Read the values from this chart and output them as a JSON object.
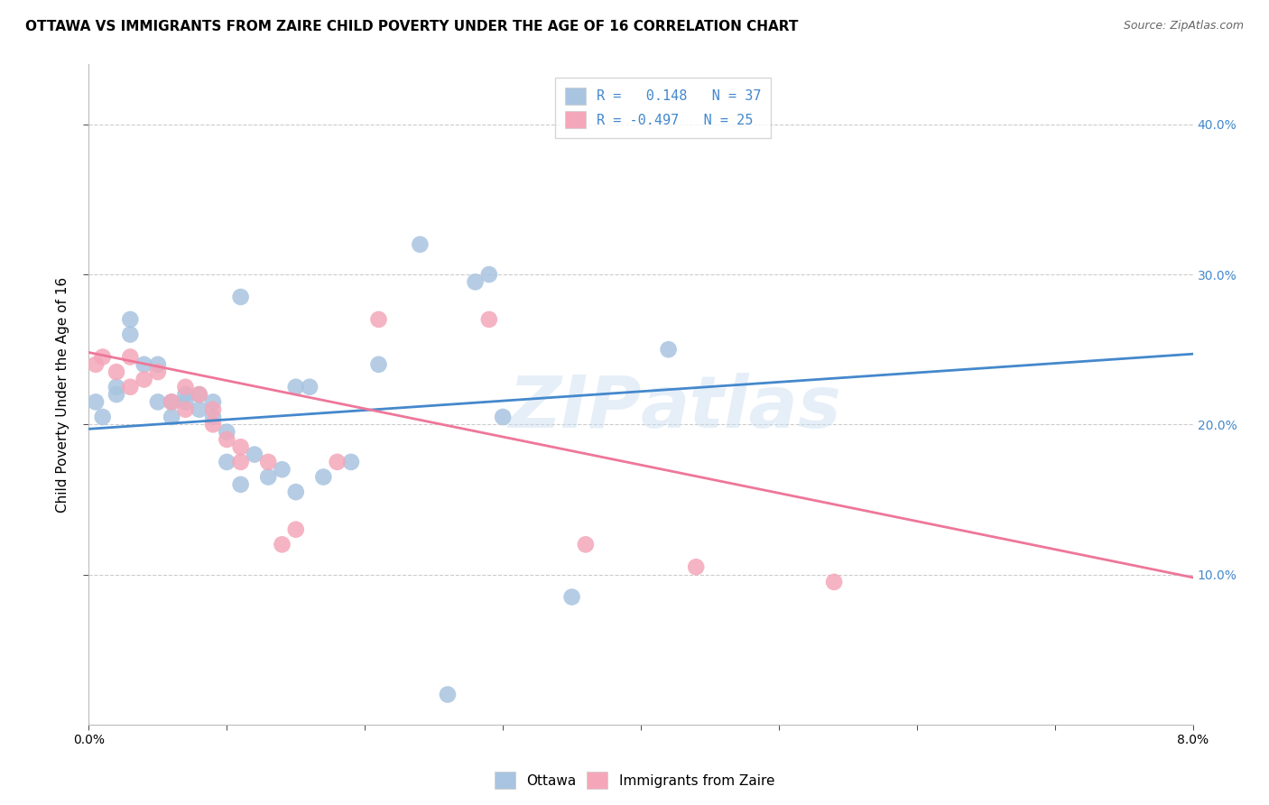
{
  "title": "OTTAWA VS IMMIGRANTS FROM ZAIRE CHILD POVERTY UNDER THE AGE OF 16 CORRELATION CHART",
  "source": "Source: ZipAtlas.com",
  "ylabel": "Child Poverty Under the Age of 16",
  "legend_r1": "R =   0.148   N = 37",
  "legend_r2": "R = -0.497   N = 25",
  "ottawa_color": "#a8c4e0",
  "zaire_color": "#f4a7b9",
  "line_ottawa_color": "#4488cc",
  "line_zaire_color": "#ee7799",
  "watermark": "ZIPAtlas",
  "xmin": 0.0,
  "xmax": 0.08,
  "ymin": 0.0,
  "ymax": 0.44,
  "ottawa_points": [
    [
      0.0005,
      0.215
    ],
    [
      0.001,
      0.205
    ],
    [
      0.002,
      0.22
    ],
    [
      0.002,
      0.225
    ],
    [
      0.003,
      0.26
    ],
    [
      0.003,
      0.27
    ],
    [
      0.004,
      0.24
    ],
    [
      0.005,
      0.24
    ],
    [
      0.005,
      0.215
    ],
    [
      0.006,
      0.205
    ],
    [
      0.006,
      0.215
    ],
    [
      0.007,
      0.22
    ],
    [
      0.007,
      0.215
    ],
    [
      0.008,
      0.22
    ],
    [
      0.008,
      0.21
    ],
    [
      0.009,
      0.215
    ],
    [
      0.009,
      0.205
    ],
    [
      0.01,
      0.195
    ],
    [
      0.01,
      0.175
    ],
    [
      0.011,
      0.16
    ],
    [
      0.011,
      0.285
    ],
    [
      0.012,
      0.18
    ],
    [
      0.013,
      0.165
    ],
    [
      0.014,
      0.17
    ],
    [
      0.015,
      0.155
    ],
    [
      0.015,
      0.225
    ],
    [
      0.016,
      0.225
    ],
    [
      0.017,
      0.165
    ],
    [
      0.019,
      0.175
    ],
    [
      0.021,
      0.24
    ],
    [
      0.024,
      0.32
    ],
    [
      0.028,
      0.295
    ],
    [
      0.029,
      0.3
    ],
    [
      0.03,
      0.205
    ],
    [
      0.035,
      0.085
    ],
    [
      0.042,
      0.25
    ],
    [
      0.026,
      0.02
    ]
  ],
  "zaire_points": [
    [
      0.0005,
      0.24
    ],
    [
      0.001,
      0.245
    ],
    [
      0.002,
      0.235
    ],
    [
      0.003,
      0.245
    ],
    [
      0.003,
      0.225
    ],
    [
      0.004,
      0.23
    ],
    [
      0.005,
      0.235
    ],
    [
      0.006,
      0.215
    ],
    [
      0.007,
      0.21
    ],
    [
      0.007,
      0.225
    ],
    [
      0.008,
      0.22
    ],
    [
      0.009,
      0.2
    ],
    [
      0.009,
      0.21
    ],
    [
      0.01,
      0.19
    ],
    [
      0.011,
      0.185
    ],
    [
      0.011,
      0.175
    ],
    [
      0.013,
      0.175
    ],
    [
      0.014,
      0.12
    ],
    [
      0.015,
      0.13
    ],
    [
      0.018,
      0.175
    ],
    [
      0.021,
      0.27
    ],
    [
      0.029,
      0.27
    ],
    [
      0.036,
      0.12
    ],
    [
      0.044,
      0.105
    ],
    [
      0.054,
      0.095
    ]
  ],
  "ottawa_line_x": [
    0.0,
    0.08
  ],
  "ottawa_line_y": [
    0.197,
    0.247
  ],
  "zaire_line_x": [
    0.0,
    0.08
  ],
  "zaire_line_y": [
    0.248,
    0.098
  ],
  "xticks": [
    0.0,
    0.01,
    0.02,
    0.03,
    0.04,
    0.05,
    0.06,
    0.07,
    0.08
  ],
  "xtick_labels": [
    "0.0%",
    "",
    "",
    "",
    "",
    "",
    "",
    "",
    "8.0%"
  ],
  "yticks_right": [
    0.1,
    0.2,
    0.3,
    0.4
  ],
  "ytick_right_labels": [
    "10.0%",
    "20.0%",
    "30.0%",
    "40.0%"
  ]
}
